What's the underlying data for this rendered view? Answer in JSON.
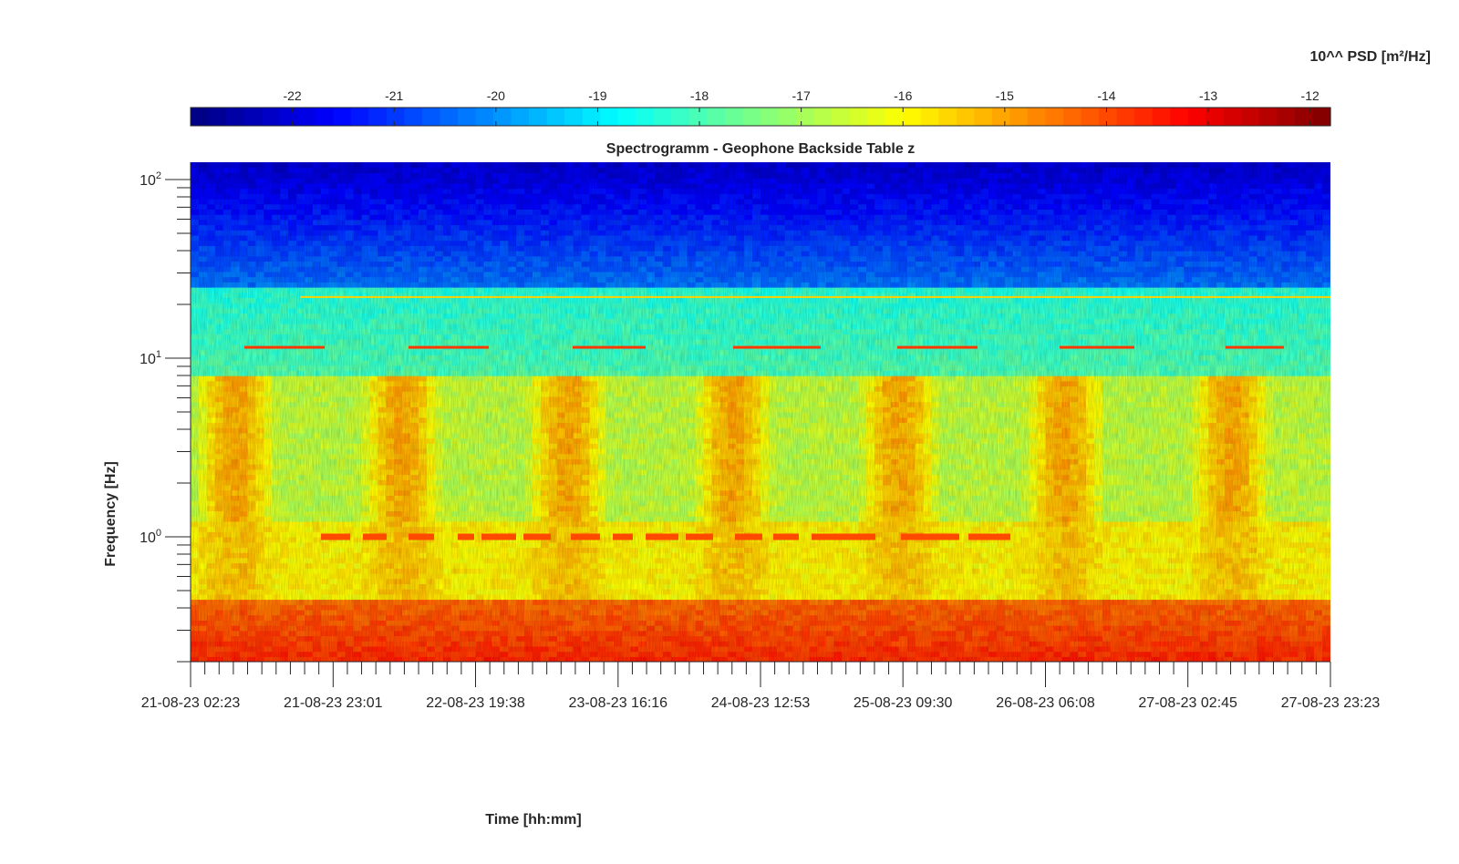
{
  "chart_data": {
    "type": "heatmap",
    "title": "Spectrogramm - Geophone Backside Table z",
    "xlabel": "Time [hh:mm]",
    "ylabel": "Frequency [Hz]",
    "colorbar": {
      "label": "10^^ PSD [m²/Hz]",
      "position": "top",
      "colormap": "jet",
      "range": [
        -23,
        -11.8
      ],
      "ticks": [
        -22,
        -21,
        -20,
        -19,
        -18,
        -17,
        -16,
        -15,
        -14,
        -13,
        -12
      ],
      "tick_labels": [
        "-22",
        "-21",
        "-20",
        "-19",
        "-18",
        "-17",
        "-16",
        "-15",
        "-14",
        "-13",
        "-12"
      ]
    },
    "x_axis": {
      "type": "date",
      "ticks": [
        "21-08-23 02:23",
        "21-08-23 23:01",
        "22-08-23 19:38",
        "23-08-23 16:16",
        "24-08-23 12:53",
        "25-08-23 09:30",
        "26-08-23 06:08",
        "27-08-23 02:45",
        "27-08-23 23:23"
      ],
      "range": [
        "21-08-23 02:23",
        "27-08-23 23:23"
      ]
    },
    "y_axis": {
      "scale": "log",
      "range": [
        0.2,
        125
      ],
      "ticks": [
        1,
        10,
        100
      ],
      "tick_labels": [
        {
          "base": "10",
          "exp": "0"
        },
        {
          "base": "10",
          "exp": "1"
        },
        {
          "base": "10",
          "exp": "2"
        }
      ]
    },
    "grid": false,
    "colors": {
      "axis": "#262626",
      "background": "#ffffff"
    }
  }
}
